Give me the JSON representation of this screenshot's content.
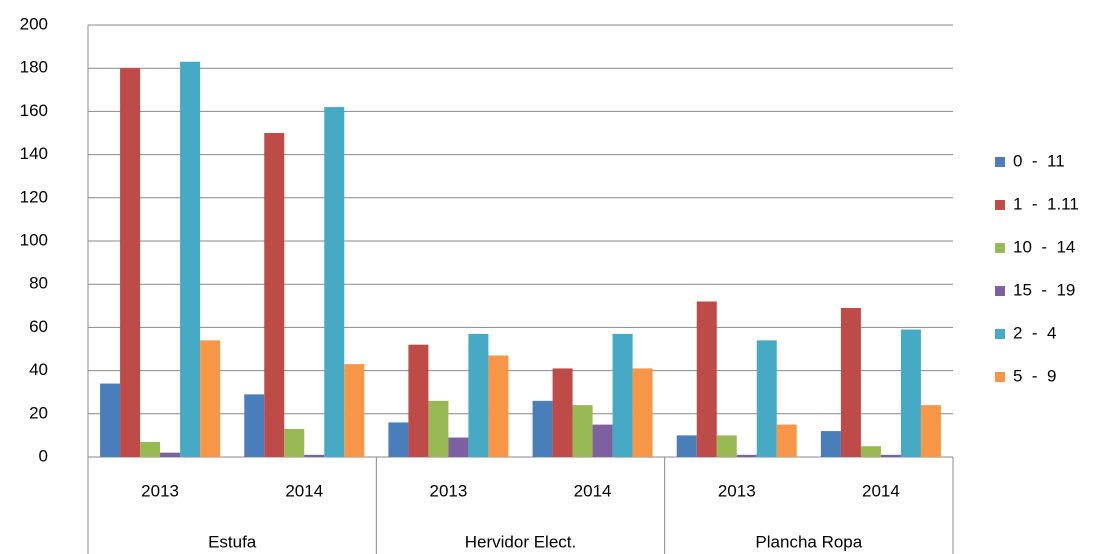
{
  "chart_data": {
    "type": "bar",
    "categories": [
      "2013",
      "2014",
      "2013",
      "2014",
      "2013",
      "2014"
    ],
    "groups": [
      "Estufa",
      "Hervidor Elect.",
      "Plancha Ropa"
    ],
    "series": [
      {
        "name": "0  -  11",
        "color": "#4a7ebb",
        "values": [
          34,
          29,
          16,
          26,
          10,
          12
        ]
      },
      {
        "name": "1  -  1.11",
        "color": "#be4b48",
        "values": [
          180,
          150,
          52,
          41,
          72,
          69
        ]
      },
      {
        "name": "10  -  14",
        "color": "#98b954",
        "values": [
          7,
          13,
          26,
          24,
          10,
          5
        ]
      },
      {
        "name": "15  -  19",
        "color": "#7d60a0",
        "values": [
          2,
          1,
          9,
          15,
          1,
          1
        ]
      },
      {
        "name": "2  -  4",
        "color": "#46aac5",
        "values": [
          183,
          162,
          57,
          57,
          54,
          59
        ]
      },
      {
        "name": "5  -  9",
        "color": "#f79646",
        "values": [
          54,
          43,
          47,
          41,
          15,
          24
        ]
      }
    ],
    "ylim": [
      0,
      200
    ],
    "yticks": [
      0,
      20,
      40,
      60,
      80,
      100,
      120,
      140,
      160,
      180,
      200
    ],
    "grid": true,
    "legend": "right"
  }
}
